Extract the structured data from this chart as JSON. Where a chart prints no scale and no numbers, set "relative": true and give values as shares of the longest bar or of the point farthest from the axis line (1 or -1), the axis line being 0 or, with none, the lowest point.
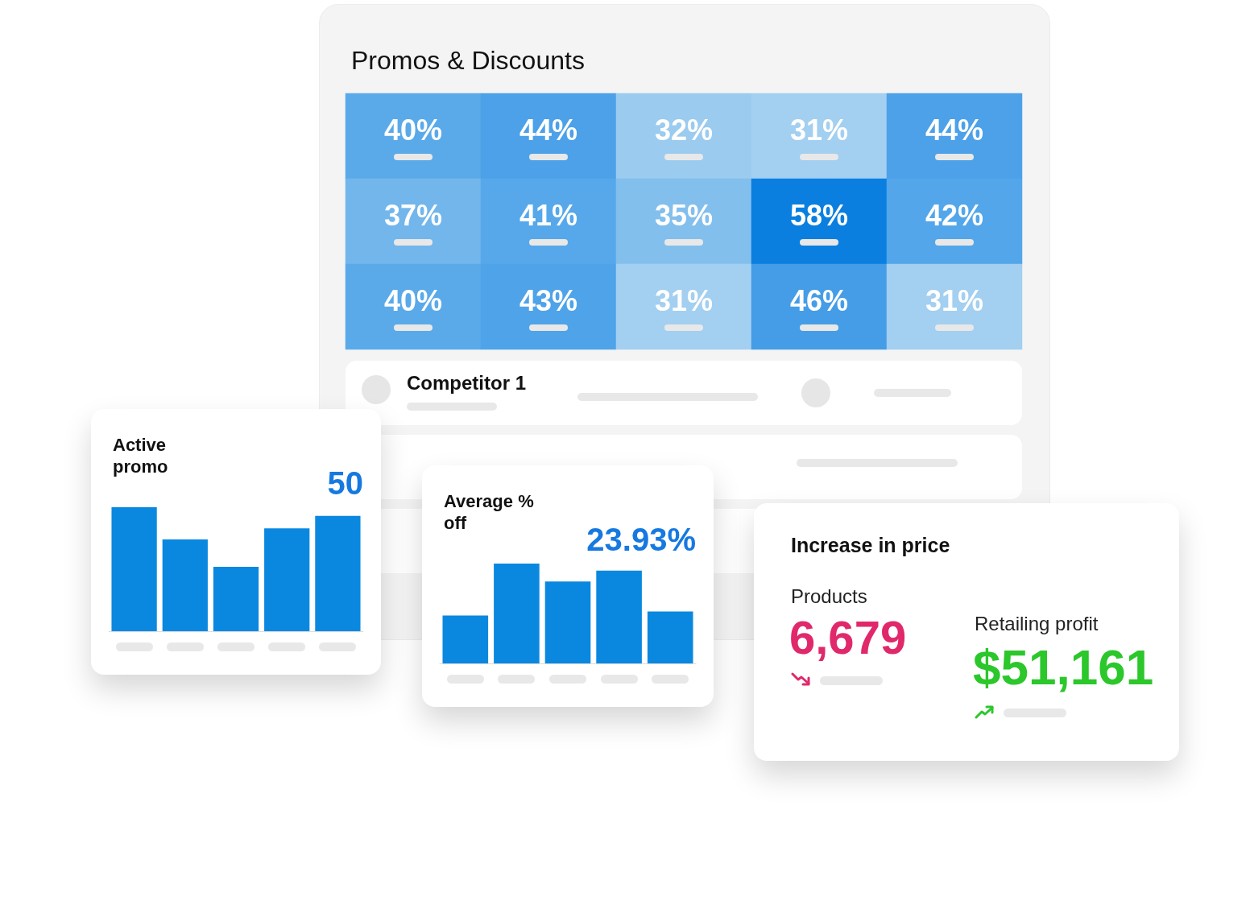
{
  "chart_data": [
    {
      "type": "heatmap",
      "title": "Promos & Discounts",
      "categories": [
        null,
        null,
        null,
        null,
        null
      ],
      "y_categories": [
        null,
        null,
        null
      ],
      "cells": [
        [
          40,
          44,
          32,
          31,
          44
        ],
        [
          37,
          41,
          35,
          58,
          42
        ],
        [
          40,
          43,
          31,
          46,
          31
        ]
      ],
      "cell_labels": [
        [
          "40%",
          "44%",
          "32%",
          "31%",
          "44%"
        ],
        [
          "37%",
          "41%",
          "35%",
          "58%",
          "42%"
        ],
        [
          "40%",
          "43%",
          "31%",
          "46%",
          "31%"
        ]
      ],
      "annotations": [
        "Competitor 1"
      ],
      "tick_labels": false
    },
    {
      "type": "bar",
      "title": "Active promo",
      "categories": [
        null,
        null,
        null,
        null,
        null
      ],
      "values": [
        1,
        0.74,
        0.52,
        0.83,
        0.93
      ],
      "relative": true,
      "color": "#0a88e0",
      "annotations": [
        "50"
      ]
    },
    {
      "type": "bar",
      "title": "Average % off",
      "categories": [
        null,
        null,
        null,
        null,
        null
      ],
      "values": [
        0.48,
        1,
        0.82,
        0.93,
        0.52
      ],
      "relative": true,
      "color": "#0a88e0",
      "annotations": [
        "23.93%"
      ]
    },
    {
      "type": "other",
      "title": "Increase in price",
      "annotations": [
        "Products",
        "6,679",
        "Retailing profit",
        "$51,161"
      ]
    }
  ]
}
